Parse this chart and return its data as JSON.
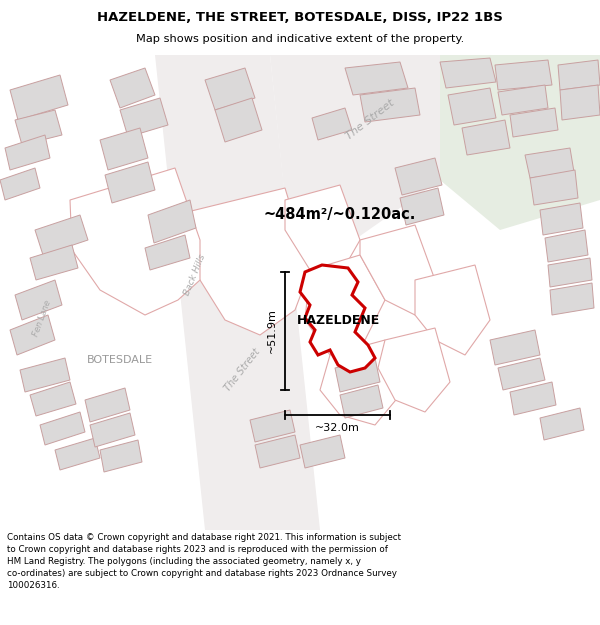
{
  "title_line1": "HAZELDENE, THE STREET, BOTESDALE, DISS, IP22 1BS",
  "title_line2": "Map shows position and indicative extent of the property.",
  "property_label": "HAZELDENE",
  "area_label": "~484m²/~0.120ac.",
  "width_label": "~32.0m",
  "height_label": "~51.9m",
  "footer_text": "Contains OS data © Crown copyright and database right 2021. This information is subject\nto Crown copyright and database rights 2023 and is reproduced with the permission of\nHM Land Registry. The polygons (including the associated geometry, namely x, y\nco-ordinates) are subject to Crown copyright and database rights 2023 Ordnance Survey\n100026316.",
  "map_bg": "#f5f3f3",
  "property_fill": "#ffffff",
  "property_edge": "#cc0000",
  "building_fill": "#dbd9d9",
  "building_edge": "#c8a0a0",
  "parcel_fill": "#ffffff",
  "parcel_edge": "#e0a8a8",
  "green_fill": "#e6ede2",
  "street_label_color": "#aaaaaa",
  "botesdale_color": "#999999",
  "meas_line_color": "#000000"
}
